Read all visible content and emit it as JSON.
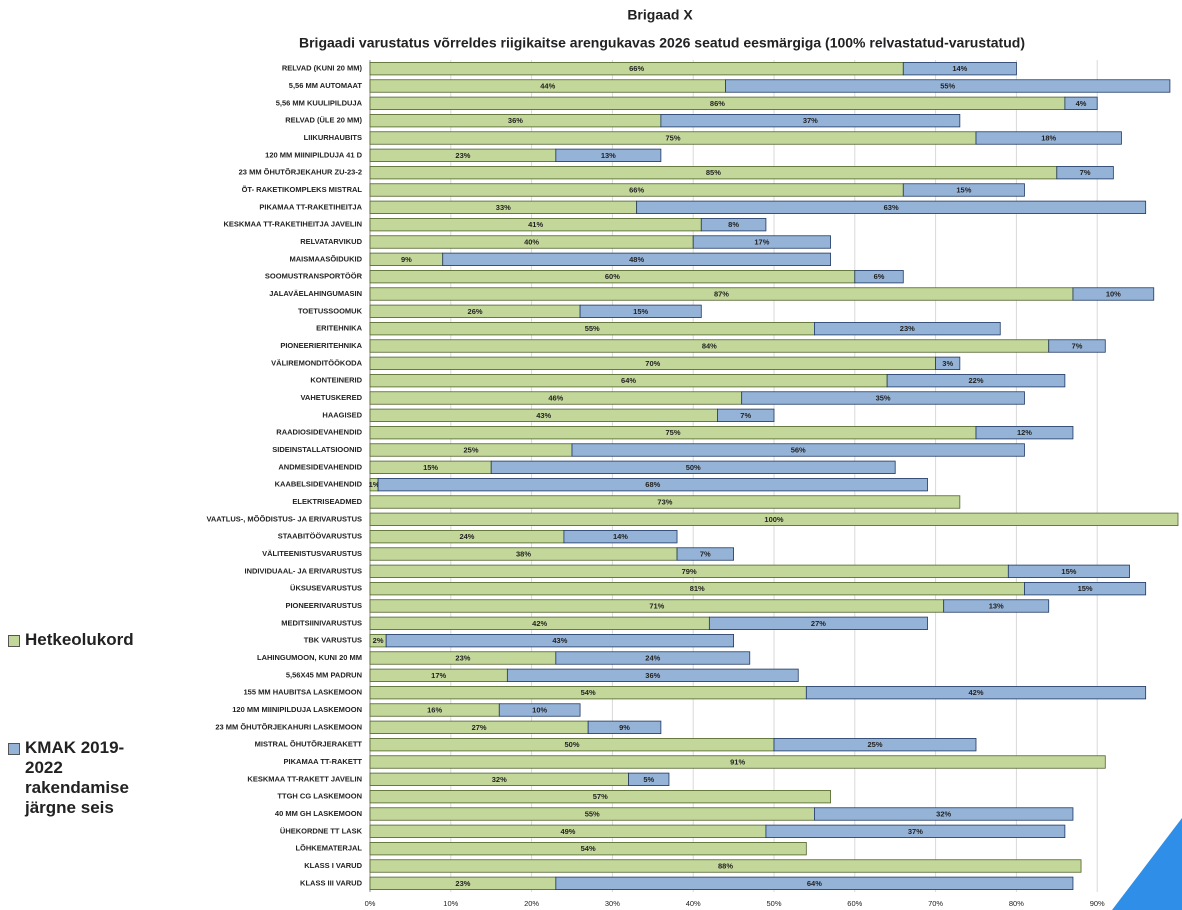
{
  "chart_data": {
    "type": "stacked-bar-horizontal",
    "title": "Brigaad X",
    "subtitle": "Brigaadi varustatus võrreldes riigikaitse arengukavas 2026 seatud eesmärgiga (100% relvastatud-varustatud)",
    "categories": [
      "RELVAD (KUNI 20 MM)",
      "5,56 MM AUTOMAAT",
      "5,56 MM KUULIPILDUJA",
      "RELVAD (ÜLE 20 MM)",
      "LIIKURHAUBITS",
      "120 MM MIINIPILDUJA 41 D",
      "23 MM ÕHUTÕRJEKAHUR ZU-23-2",
      "ÕT- RAKETIKOMPLEKS MISTRAL",
      "PIKAMAA TT-RAKETIHEITJA",
      "KESKMAA TT-RAKETIHEITJA JAVELIN",
      "RELVATARVIKUD",
      "MAISMAASÕIDUKID",
      "SOOMUSTRANSPORTÖÖR",
      "JALAVÄELAHINGUMASIN",
      "TOETUSSOOMUK",
      "ERITEHNIKA",
      "PIONEERIERITEHNIKA",
      "VÄLIREMONDITÖÖKODA",
      "KONTEINERID",
      "VAHETUSKERED",
      "HAAGISED",
      "RAADIOSIDEVAHENDID",
      "SIDEINSTALLATSIOONID",
      "ANDMESIDEVAHENDID",
      "KAABELSIDEVAHENDID",
      "ELEKTRISEADMED",
      "VAATLUS-, MÕÕDISTUS- JA ERIVARUSTUS",
      "STAABITÖÖVARUSTUS",
      "VÄLITEENISTUSVARUSTUS",
      "INDIVIDUAAL- JA ERIVARUSTUS",
      "ÜKSUSEVARUSTUS",
      "PIONEERIVARUSTUS",
      "MEDITSIINIVARUSTUS",
      "TBK VARUSTUS",
      "LAHINGUMOON, KUNI 20 MM",
      "5,56X45 MM PADRUN",
      "155 MM HAUBITSA LASKEMOON",
      "120 MM MIINIPILDUJA LASKEMOON",
      "23 MM ÕHUTÕRJEKAHURI LASKEMOON",
      "MISTRAL ÕHUTÕRJERAKETT",
      "PIKAMAA TT-RAKETT",
      "KESKMAA TT-RAKETT JAVELIN",
      "TTGH CG LASKEMOON",
      "40 MM GH LASKEMOON",
      "ÜHEKORDNE TT LASK",
      "LÕHKEMATERJAL",
      "KLASS I VARUD",
      "KLASS III VARUD"
    ],
    "series": [
      {
        "name": "Hetkeolukord",
        "color": "#c4d79b",
        "values": [
          66,
          44,
          86,
          36,
          75,
          23,
          85,
          66,
          33,
          41,
          40,
          9,
          60,
          87,
          26,
          55,
          84,
          70,
          64,
          46,
          43,
          75,
          25,
          15,
          1,
          73,
          100,
          24,
          38,
          79,
          81,
          71,
          42,
          2,
          23,
          17,
          54,
          16,
          27,
          50,
          91,
          32,
          57,
          55,
          49,
          54,
          88,
          23
        ],
        "value_labels": [
          "66%",
          "44%",
          "86%",
          "36%",
          "75%",
          "23%",
          "85%",
          "66%",
          "33%",
          "41%",
          "40%",
          "9%",
          "60%",
          "87%",
          "26%",
          "55%",
          "84%",
          "70%",
          "64%",
          "46%",
          "43%",
          "75%",
          "25%",
          "15%",
          "1%",
          "73%",
          "100%",
          "24%",
          "38%",
          "79%",
          "81%",
          "71%",
          "42%",
          "2%",
          "23%",
          "17%",
          "54%",
          "16%",
          "27%",
          "50%",
          "91%",
          "32%",
          "57%",
          "55%",
          "49%",
          "54%",
          "88%",
          "23%"
        ]
      },
      {
        "name": "KMAK 2019-2022 rakendamise järgne seis",
        "color": "#95b3d7",
        "values": [
          14,
          55,
          4,
          37,
          18,
          13,
          7,
          15,
          63,
          8,
          17,
          48,
          6,
          10,
          15,
          23,
          7,
          3,
          22,
          35,
          7,
          12,
          56,
          50,
          68,
          null,
          null,
          14,
          7,
          15,
          15,
          13,
          27,
          43,
          24,
          36,
          42,
          10,
          9,
          25,
          null,
          5,
          null,
          32,
          37,
          null,
          null,
          64
        ],
        "value_labels": [
          "14%",
          "55%",
          "4%",
          "37%",
          "18%",
          "13%",
          "7%",
          "15%",
          "63%",
          "8%",
          "17%",
          "48%",
          "6%",
          "10%",
          "15%",
          "23%",
          "7%",
          "3%",
          "22%",
          "35%",
          "7%",
          "12%",
          "56%",
          "50%",
          "68%",
          null,
          null,
          "14%",
          "7%",
          "15%",
          "15%",
          "13%",
          "27%",
          "43%",
          "24%",
          "36%",
          "42%",
          "10%",
          "9%",
          "25%",
          null,
          "5%",
          null,
          "32%",
          "37%",
          null,
          null,
          "64%"
        ]
      }
    ],
    "xlim": [
      0,
      100
    ],
    "xticks": [
      {
        "value": 0,
        "label": "0%"
      },
      {
        "value": 10,
        "label": "10%"
      },
      {
        "value": 20,
        "label": "20%"
      },
      {
        "value": 30,
        "label": "30%"
      },
      {
        "value": 40,
        "label": "40%"
      },
      {
        "value": 50,
        "label": "50%"
      },
      {
        "value": 60,
        "label": "60%"
      },
      {
        "value": 70,
        "label": "70%"
      },
      {
        "value": 80,
        "label": "80%"
      },
      {
        "value": 90,
        "label": "90%"
      }
    ],
    "grid": true
  }
}
